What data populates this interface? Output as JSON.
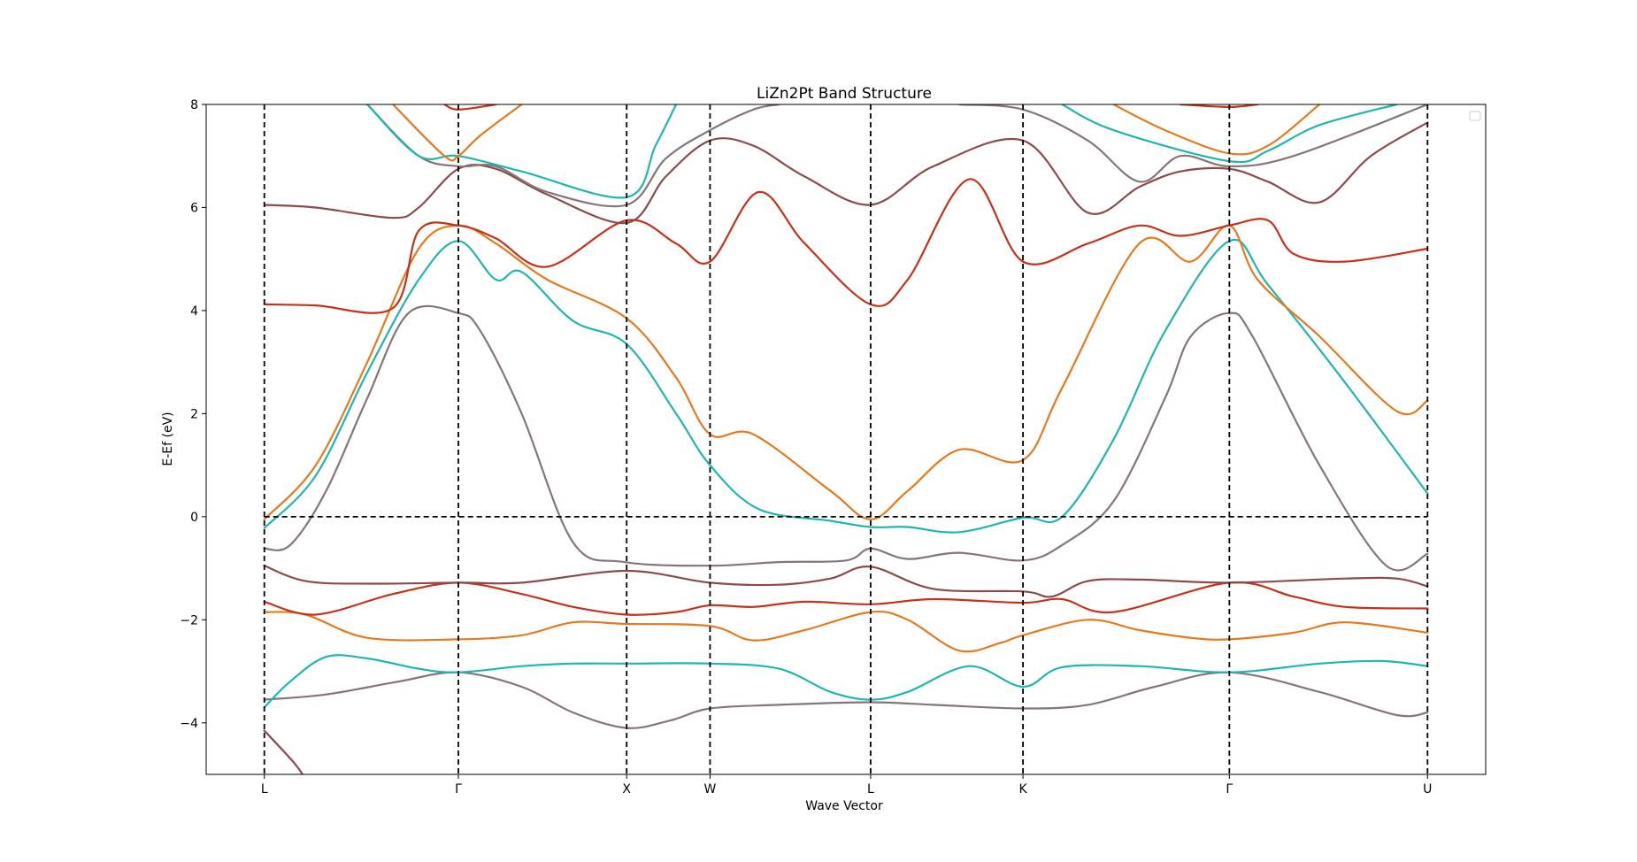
{
  "chart_data": {
    "type": "line",
    "title": "LiZn2Pt Band Structure",
    "xlabel": "Wave Vector",
    "ylabel": "E-Ef (eV)",
    "ylim": [
      -5,
      8
    ],
    "yticks": [
      -4,
      -2,
      0,
      2,
      4,
      6,
      8
    ],
    "ytick_labels": [
      "−4",
      "−2",
      "0",
      "2",
      "4",
      "6",
      "8"
    ],
    "kpath": [
      "L",
      "Γ",
      "X",
      "W",
      "L",
      "K",
      "Γ",
      "U"
    ],
    "kpath_positions": [
      0,
      0.377,
      0.704,
      0.866,
      1.178,
      1.474,
      1.875,
      2.26
    ],
    "xlim": [
      -0.113,
      2.373
    ],
    "fermi_level": 0,
    "legend": "top-right (empty)",
    "grid": false,
    "colors": {
      "teal": "#21b5b0",
      "orange": "#e27b20",
      "red": "#c2321c",
      "brown": "#8a4b4b",
      "gray": "#857578"
    },
    "series": [
      {
        "color": "brown",
        "points": [
          [
            0,
            -4.15
          ],
          [
            0.06,
            -4.8
          ],
          [
            0.08,
            -5.1
          ]
        ]
      },
      {
        "color": "gray",
        "points": [
          [
            0,
            -3.55
          ],
          [
            0.12,
            -3.45
          ],
          [
            0.26,
            -3.2
          ],
          [
            0.377,
            -3.02
          ],
          [
            0.5,
            -3.3
          ],
          [
            0.6,
            -3.8
          ],
          [
            0.704,
            -4.1
          ],
          [
            0.79,
            -3.95
          ],
          [
            0.866,
            -3.72
          ],
          [
            1.0,
            -3.65
          ],
          [
            1.178,
            -3.6
          ],
          [
            1.3,
            -3.65
          ],
          [
            1.474,
            -3.72
          ],
          [
            1.6,
            -3.65
          ],
          [
            1.73,
            -3.3
          ],
          [
            1.875,
            -3.02
          ],
          [
            2.05,
            -3.4
          ],
          [
            2.2,
            -3.85
          ],
          [
            2.26,
            -3.8
          ]
        ]
      },
      {
        "color": "teal",
        "points": [
          [
            0,
            -3.7
          ],
          [
            0.05,
            -3.2
          ],
          [
            0.12,
            -2.72
          ],
          [
            0.2,
            -2.75
          ],
          [
            0.3,
            -2.95
          ],
          [
            0.377,
            -3.02
          ],
          [
            0.5,
            -2.9
          ],
          [
            0.6,
            -2.85
          ],
          [
            0.704,
            -2.85
          ],
          [
            0.866,
            -2.85
          ],
          [
            1.0,
            -2.95
          ],
          [
            1.1,
            -3.4
          ],
          [
            1.178,
            -3.55
          ],
          [
            1.25,
            -3.4
          ],
          [
            1.37,
            -2.9
          ],
          [
            1.474,
            -3.3
          ],
          [
            1.55,
            -2.92
          ],
          [
            1.7,
            -2.9
          ],
          [
            1.875,
            -3.02
          ],
          [
            2.05,
            -2.85
          ],
          [
            2.17,
            -2.8
          ],
          [
            2.26,
            -2.9
          ]
        ]
      },
      {
        "color": "orange",
        "points": [
          [
            0,
            -1.85
          ],
          [
            0.08,
            -1.9
          ],
          [
            0.2,
            -2.35
          ],
          [
            0.377,
            -2.38
          ],
          [
            0.5,
            -2.3
          ],
          [
            0.6,
            -2.05
          ],
          [
            0.704,
            -2.08
          ],
          [
            0.866,
            -2.12
          ],
          [
            0.95,
            -2.4
          ],
          [
            1.05,
            -2.2
          ],
          [
            1.178,
            -1.85
          ],
          [
            1.25,
            -2.0
          ],
          [
            1.35,
            -2.6
          ],
          [
            1.43,
            -2.45
          ],
          [
            1.474,
            -2.3
          ],
          [
            1.6,
            -2.0
          ],
          [
            1.7,
            -2.2
          ],
          [
            1.8,
            -2.35
          ],
          [
            1.875,
            -2.38
          ],
          [
            2.0,
            -2.25
          ],
          [
            2.1,
            -2.05
          ],
          [
            2.26,
            -2.25
          ]
        ]
      },
      {
        "color": "red",
        "points": [
          [
            0,
            -1.65
          ],
          [
            0.1,
            -1.9
          ],
          [
            0.25,
            -1.5
          ],
          [
            0.377,
            -1.28
          ],
          [
            0.5,
            -1.5
          ],
          [
            0.6,
            -1.75
          ],
          [
            0.704,
            -1.9
          ],
          [
            0.8,
            -1.85
          ],
          [
            0.866,
            -1.72
          ],
          [
            0.95,
            -1.75
          ],
          [
            1.05,
            -1.65
          ],
          [
            1.178,
            -1.7
          ],
          [
            1.3,
            -1.6
          ],
          [
            1.474,
            -1.67
          ],
          [
            1.55,
            -1.6
          ],
          [
            1.65,
            -1.85
          ],
          [
            1.875,
            -1.28
          ],
          [
            2.0,
            -1.55
          ],
          [
            2.1,
            -1.75
          ],
          [
            2.26,
            -1.78
          ]
        ]
      },
      {
        "color": "brown",
        "points": [
          [
            0,
            -0.95
          ],
          [
            0.08,
            -1.25
          ],
          [
            0.2,
            -1.3
          ],
          [
            0.377,
            -1.28
          ],
          [
            0.5,
            -1.28
          ],
          [
            0.704,
            -1.05
          ],
          [
            0.866,
            -1.28
          ],
          [
            1.0,
            -1.32
          ],
          [
            1.1,
            -1.2
          ],
          [
            1.178,
            -0.97
          ],
          [
            1.3,
            -1.4
          ],
          [
            1.474,
            -1.45
          ],
          [
            1.53,
            -1.55
          ],
          [
            1.6,
            -1.25
          ],
          [
            1.7,
            -1.22
          ],
          [
            1.875,
            -1.28
          ],
          [
            2.1,
            -1.2
          ],
          [
            2.2,
            -1.2
          ],
          [
            2.26,
            -1.35
          ]
        ]
      },
      {
        "color": "gray",
        "points": [
          [
            0,
            -0.62
          ],
          [
            0.05,
            -0.55
          ],
          [
            0.12,
            0.5
          ],
          [
            0.2,
            2.3
          ],
          [
            0.28,
            3.95
          ],
          [
            0.377,
            3.95
          ],
          [
            0.42,
            3.6
          ],
          [
            0.5,
            2.0
          ],
          [
            0.6,
            -0.5
          ],
          [
            0.7,
            -0.88
          ],
          [
            0.866,
            -0.95
          ],
          [
            1.0,
            -0.88
          ],
          [
            1.13,
            -0.85
          ],
          [
            1.178,
            -0.62
          ],
          [
            1.25,
            -0.82
          ],
          [
            1.35,
            -0.7
          ],
          [
            1.474,
            -0.85
          ],
          [
            1.55,
            -0.55
          ],
          [
            1.65,
            0.3
          ],
          [
            1.75,
            2.3
          ],
          [
            1.8,
            3.5
          ],
          [
            1.875,
            3.95
          ],
          [
            1.92,
            3.5
          ],
          [
            2.05,
            1.0
          ],
          [
            2.18,
            -0.95
          ],
          [
            2.26,
            -0.72
          ]
        ]
      },
      {
        "color": "teal",
        "points": [
          [
            0,
            -0.22
          ],
          [
            0.1,
            0.8
          ],
          [
            0.2,
            2.8
          ],
          [
            0.3,
            4.6
          ],
          [
            0.377,
            5.35
          ],
          [
            0.45,
            4.6
          ],
          [
            0.5,
            4.75
          ],
          [
            0.6,
            3.8
          ],
          [
            0.704,
            3.35
          ],
          [
            0.8,
            2.0
          ],
          [
            0.866,
            1.0
          ],
          [
            0.96,
            0.15
          ],
          [
            1.1,
            -0.08
          ],
          [
            1.178,
            -0.2
          ],
          [
            1.25,
            -0.2
          ],
          [
            1.35,
            -0.3
          ],
          [
            1.474,
            -0.02
          ],
          [
            1.55,
            0.0
          ],
          [
            1.65,
            1.5
          ],
          [
            1.75,
            3.6
          ],
          [
            1.875,
            5.35
          ],
          [
            1.95,
            4.5
          ],
          [
            2.1,
            2.6
          ],
          [
            2.26,
            0.45
          ]
        ]
      },
      {
        "color": "orange",
        "points": [
          [
            0,
            -0.05
          ],
          [
            0.1,
            1.0
          ],
          [
            0.2,
            3.0
          ],
          [
            0.3,
            5.2
          ],
          [
            0.377,
            5.65
          ],
          [
            0.45,
            5.3
          ],
          [
            0.55,
            4.6
          ],
          [
            0.704,
            3.85
          ],
          [
            0.8,
            2.7
          ],
          [
            0.866,
            1.6
          ],
          [
            0.95,
            1.6
          ],
          [
            1.1,
            0.5
          ],
          [
            1.178,
            -0.05
          ],
          [
            1.25,
            0.5
          ],
          [
            1.35,
            1.3
          ],
          [
            1.474,
            1.1
          ],
          [
            1.55,
            2.5
          ],
          [
            1.7,
            5.3
          ],
          [
            1.8,
            4.95
          ],
          [
            1.875,
            5.65
          ],
          [
            1.93,
            4.6
          ],
          [
            2.05,
            3.5
          ],
          [
            2.2,
            2.05
          ],
          [
            2.26,
            2.25
          ]
        ]
      },
      {
        "color": "red",
        "points": [
          [
            0,
            4.12
          ],
          [
            0.1,
            4.1
          ],
          [
            0.25,
            4.05
          ],
          [
            0.3,
            5.55
          ],
          [
            0.377,
            5.65
          ],
          [
            0.45,
            5.4
          ],
          [
            0.55,
            4.85
          ],
          [
            0.704,
            5.75
          ],
          [
            0.8,
            5.3
          ],
          [
            0.866,
            4.95
          ],
          [
            0.96,
            6.3
          ],
          [
            1.05,
            5.3
          ],
          [
            1.178,
            4.12
          ],
          [
            1.25,
            4.6
          ],
          [
            1.37,
            6.55
          ],
          [
            1.474,
            4.95
          ],
          [
            1.6,
            5.3
          ],
          [
            1.7,
            5.65
          ],
          [
            1.78,
            5.45
          ],
          [
            1.875,
            5.65
          ],
          [
            1.95,
            5.75
          ],
          [
            2.0,
            5.1
          ],
          [
            2.1,
            4.95
          ],
          [
            2.26,
            5.2
          ]
        ]
      },
      {
        "color": "brown",
        "points": [
          [
            0,
            6.05
          ],
          [
            0.1,
            6.0
          ],
          [
            0.25,
            5.8
          ],
          [
            0.3,
            6.0
          ],
          [
            0.377,
            6.75
          ],
          [
            0.45,
            6.75
          ],
          [
            0.55,
            6.25
          ],
          [
            0.704,
            5.7
          ],
          [
            0.78,
            6.6
          ],
          [
            0.866,
            7.3
          ],
          [
            0.95,
            7.2
          ],
          [
            1.05,
            6.6
          ],
          [
            1.178,
            6.05
          ],
          [
            1.3,
            6.8
          ],
          [
            1.474,
            7.3
          ],
          [
            1.6,
            5.9
          ],
          [
            1.7,
            6.4
          ],
          [
            1.78,
            6.7
          ],
          [
            1.875,
            6.75
          ],
          [
            1.95,
            6.5
          ],
          [
            2.05,
            6.1
          ],
          [
            2.15,
            7.0
          ],
          [
            2.26,
            7.65
          ]
        ]
      },
      {
        "color": "gray",
        "points": [
          [
            0.2,
            8.0
          ],
          [
            0.3,
            7.0
          ],
          [
            0.377,
            6.8
          ],
          [
            0.45,
            6.8
          ],
          [
            0.55,
            6.3
          ],
          [
            0.704,
            6.05
          ],
          [
            0.78,
            6.95
          ],
          [
            0.866,
            7.5
          ],
          [
            0.95,
            7.9
          ],
          [
            1.0,
            8.0
          ]
        ]
      },
      {
        "color": "teal",
        "points": [
          [
            0.2,
            8.0
          ],
          [
            0.3,
            7.0
          ],
          [
            0.377,
            7.0
          ],
          [
            0.5,
            6.7
          ],
          [
            0.704,
            6.2
          ],
          [
            0.76,
            7.2
          ],
          [
            0.8,
            8.0
          ]
        ]
      },
      {
        "color": "orange",
        "points": [
          [
            0.25,
            8.0
          ],
          [
            0.35,
            7.0
          ],
          [
            0.377,
            7.0
          ],
          [
            0.42,
            7.4
          ],
          [
            0.5,
            8.0
          ]
        ]
      },
      {
        "color": "red",
        "points": [
          [
            0.35,
            8.0
          ],
          [
            0.377,
            7.9
          ],
          [
            0.45,
            8.0
          ]
        ]
      },
      {
        "color": "gray",
        "points": [
          [
            1.35,
            8.0
          ],
          [
            1.474,
            7.9
          ],
          [
            1.6,
            7.3
          ],
          [
            1.7,
            6.5
          ],
          [
            1.78,
            7.0
          ],
          [
            1.875,
            6.8
          ],
          [
            2.0,
            7.0
          ],
          [
            2.26,
            8.0
          ]
        ]
      },
      {
        "color": "teal",
        "points": [
          [
            1.55,
            8.0
          ],
          [
            1.65,
            7.5
          ],
          [
            1.875,
            6.9
          ],
          [
            1.95,
            7.1
          ],
          [
            2.05,
            7.6
          ],
          [
            2.2,
            8.0
          ]
        ]
      },
      {
        "color": "orange",
        "points": [
          [
            1.65,
            8.0
          ],
          [
            1.75,
            7.5
          ],
          [
            1.875,
            7.05
          ],
          [
            1.95,
            7.2
          ],
          [
            2.05,
            8.0
          ]
        ]
      },
      {
        "color": "red",
        "points": [
          [
            1.78,
            8.0
          ],
          [
            1.875,
            7.95
          ],
          [
            1.93,
            8.0
          ]
        ]
      }
    ]
  }
}
